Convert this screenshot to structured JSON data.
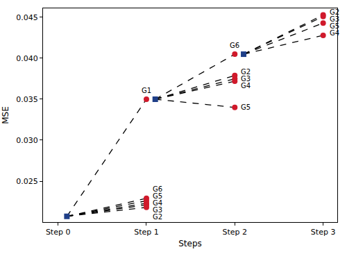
{
  "chart_data": {
    "type": "scatter",
    "x_label": "Steps",
    "y_label": "MSE",
    "xlim": [
      -0.17,
      3.16
    ],
    "ylim": [
      0.02,
      0.0461
    ],
    "xticks": [
      {
        "value": 0,
        "label": "Step 0"
      },
      {
        "value": 1,
        "label": "Step 1"
      },
      {
        "value": 2,
        "label": "Step 2"
      },
      {
        "value": 3,
        "label": "Step 3"
      }
    ],
    "yticks": [
      0.025,
      {
        "value": 0.03,
        "label": "0.030"
      },
      0.035,
      {
        "value": 0.04,
        "label": "0.040"
      },
      0.045
    ],
    "grid": false,
    "edges": {
      "color": "#000000",
      "line_style": "dashed"
    },
    "selected": {
      "color": "#1f3f88",
      "marker": "square"
    },
    "candidate": {
      "color": "#d0192b",
      "marker": "circle"
    },
    "levels": [
      {
        "from": {
          "x": 0.1,
          "y": 0.0207
        },
        "candidates": [
          {
            "label": "G1",
            "x": 1,
            "y": 0.035
          },
          {
            "label": "G6",
            "x": 1,
            "y": 0.0229
          },
          {
            "label": "G5",
            "x": 1,
            "y": 0.0226
          },
          {
            "label": "G4",
            "x": 1,
            "y": 0.0223
          },
          {
            "label": "G3",
            "x": 1,
            "y": 0.0221
          },
          {
            "label": "G2",
            "x": 1,
            "y": 0.0218
          }
        ]
      },
      {
        "from": {
          "x": 1.1,
          "y": 0.035
        },
        "candidates": [
          {
            "label": "G6",
            "x": 2,
            "y": 0.0405
          },
          {
            "label": "G2",
            "x": 2,
            "y": 0.0379
          },
          {
            "label": "G3",
            "x": 2,
            "y": 0.0375
          },
          {
            "label": "G4",
            "x": 2,
            "y": 0.0372
          },
          {
            "label": "G5",
            "x": 2,
            "y": 0.034
          }
        ]
      },
      {
        "from": {
          "x": 2.1,
          "y": 0.0405
        },
        "candidates": [
          {
            "label": "G2",
            "x": 3,
            "y": 0.0453
          },
          {
            "label": "G3",
            "x": 3,
            "y": 0.0451
          },
          {
            "label": "G5",
            "x": 3,
            "y": 0.0443
          },
          {
            "label": "G4",
            "x": 3,
            "y": 0.0428
          }
        ]
      }
    ]
  }
}
